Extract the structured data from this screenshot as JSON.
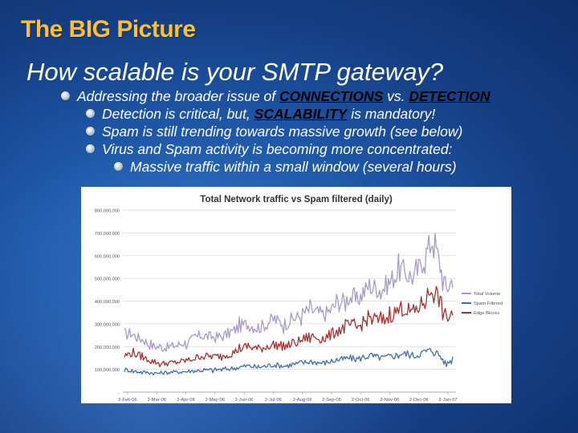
{
  "slide": {
    "title": "The BIG Picture",
    "subtitle": "How scalable is your SMTP gateway?"
  },
  "bullets": [
    {
      "level": 1,
      "pre": "Addressing the broader issue of ",
      "em1": "CONNECTIONS",
      "mid": " vs. ",
      "em2": "DETECTION"
    },
    {
      "level": 2,
      "pre": "Detection is critical, but, ",
      "em1": "SCALABILITY",
      "post": " is mandatory!"
    },
    {
      "level": 2,
      "text": "Spam is still trending towards massive growth (see below)"
    },
    {
      "level": 2,
      "text": "Virus and Spam activity is becoming more concentrated:"
    },
    {
      "level": 3,
      "text": "Massive traffic within a small window (several hours)"
    }
  ],
  "chart_data": {
    "type": "line",
    "title": "Total Network traffic vs Spam filtered (daily)",
    "ylim": [
      0,
      800000000
    ],
    "y_ticks": [
      "800,000,000",
      "700,000,000",
      "600,000,000",
      "500,000,000",
      "400,000,000",
      "300,000,000",
      "200,000,000",
      "100,000,000",
      "-"
    ],
    "x_ticks": [
      "2-Feb-06",
      "2-Mar-06",
      "2-Apr-06",
      "2-May-06",
      "2-Jun-06",
      "2-Jul-06",
      "2-Aug-06",
      "2-Sep-06",
      "2-Oct-06",
      "2-Nov-06",
      "2-Dec-06",
      "2-Jan-07"
    ],
    "legend_position": "right",
    "grid": true,
    "series": [
      {
        "name": "Total Volume",
        "color": "#a99bc9",
        "values": [
          250000000,
          260000000,
          240000000,
          230000000,
          205000000,
          200000000,
          195000000,
          200000000,
          205000000,
          215000000,
          220000000,
          240000000,
          250000000,
          245000000,
          240000000,
          245000000,
          255000000,
          270000000,
          290000000,
          300000000,
          290000000,
          285000000,
          300000000,
          320000000,
          310000000,
          300000000,
          320000000,
          330000000,
          350000000,
          360000000,
          350000000,
          340000000,
          360000000,
          390000000,
          400000000,
          420000000,
          400000000,
          430000000,
          470000000,
          460000000,
          450000000,
          480000000,
          510000000,
          540000000,
          520000000,
          500000000,
          560000000,
          620000000,
          680000000,
          560000000,
          450000000,
          500000000
        ]
      },
      {
        "name": "Spam Filtered",
        "color": "#3e6fae",
        "values": [
          100000000,
          95000000,
          90000000,
          88000000,
          85000000,
          83000000,
          85000000,
          87000000,
          88000000,
          90000000,
          92000000,
          94000000,
          95000000,
          97000000,
          98000000,
          100000000,
          102000000,
          105000000,
          110000000,
          115000000,
          112000000,
          110000000,
          115000000,
          120000000,
          118000000,
          115000000,
          120000000,
          125000000,
          130000000,
          135000000,
          130000000,
          128000000,
          135000000,
          140000000,
          145000000,
          150000000,
          145000000,
          150000000,
          160000000,
          155000000,
          150000000,
          155000000,
          160000000,
          170000000,
          165000000,
          160000000,
          170000000,
          180000000,
          185000000,
          160000000,
          120000000,
          150000000
        ]
      },
      {
        "name": "Edge Blocks",
        "color": "#a8302f",
        "values": [
          160000000,
          170000000,
          165000000,
          150000000,
          140000000,
          130000000,
          125000000,
          128000000,
          130000000,
          135000000,
          140000000,
          150000000,
          160000000,
          158000000,
          155000000,
          160000000,
          165000000,
          175000000,
          190000000,
          200000000,
          195000000,
          190000000,
          200000000,
          210000000,
          205000000,
          200000000,
          210000000,
          220000000,
          235000000,
          245000000,
          240000000,
          235000000,
          250000000,
          270000000,
          280000000,
          295000000,
          280000000,
          300000000,
          330000000,
          320000000,
          310000000,
          330000000,
          350000000,
          370000000,
          360000000,
          350000000,
          380000000,
          420000000,
          460000000,
          400000000,
          320000000,
          350000000
        ]
      }
    ]
  }
}
